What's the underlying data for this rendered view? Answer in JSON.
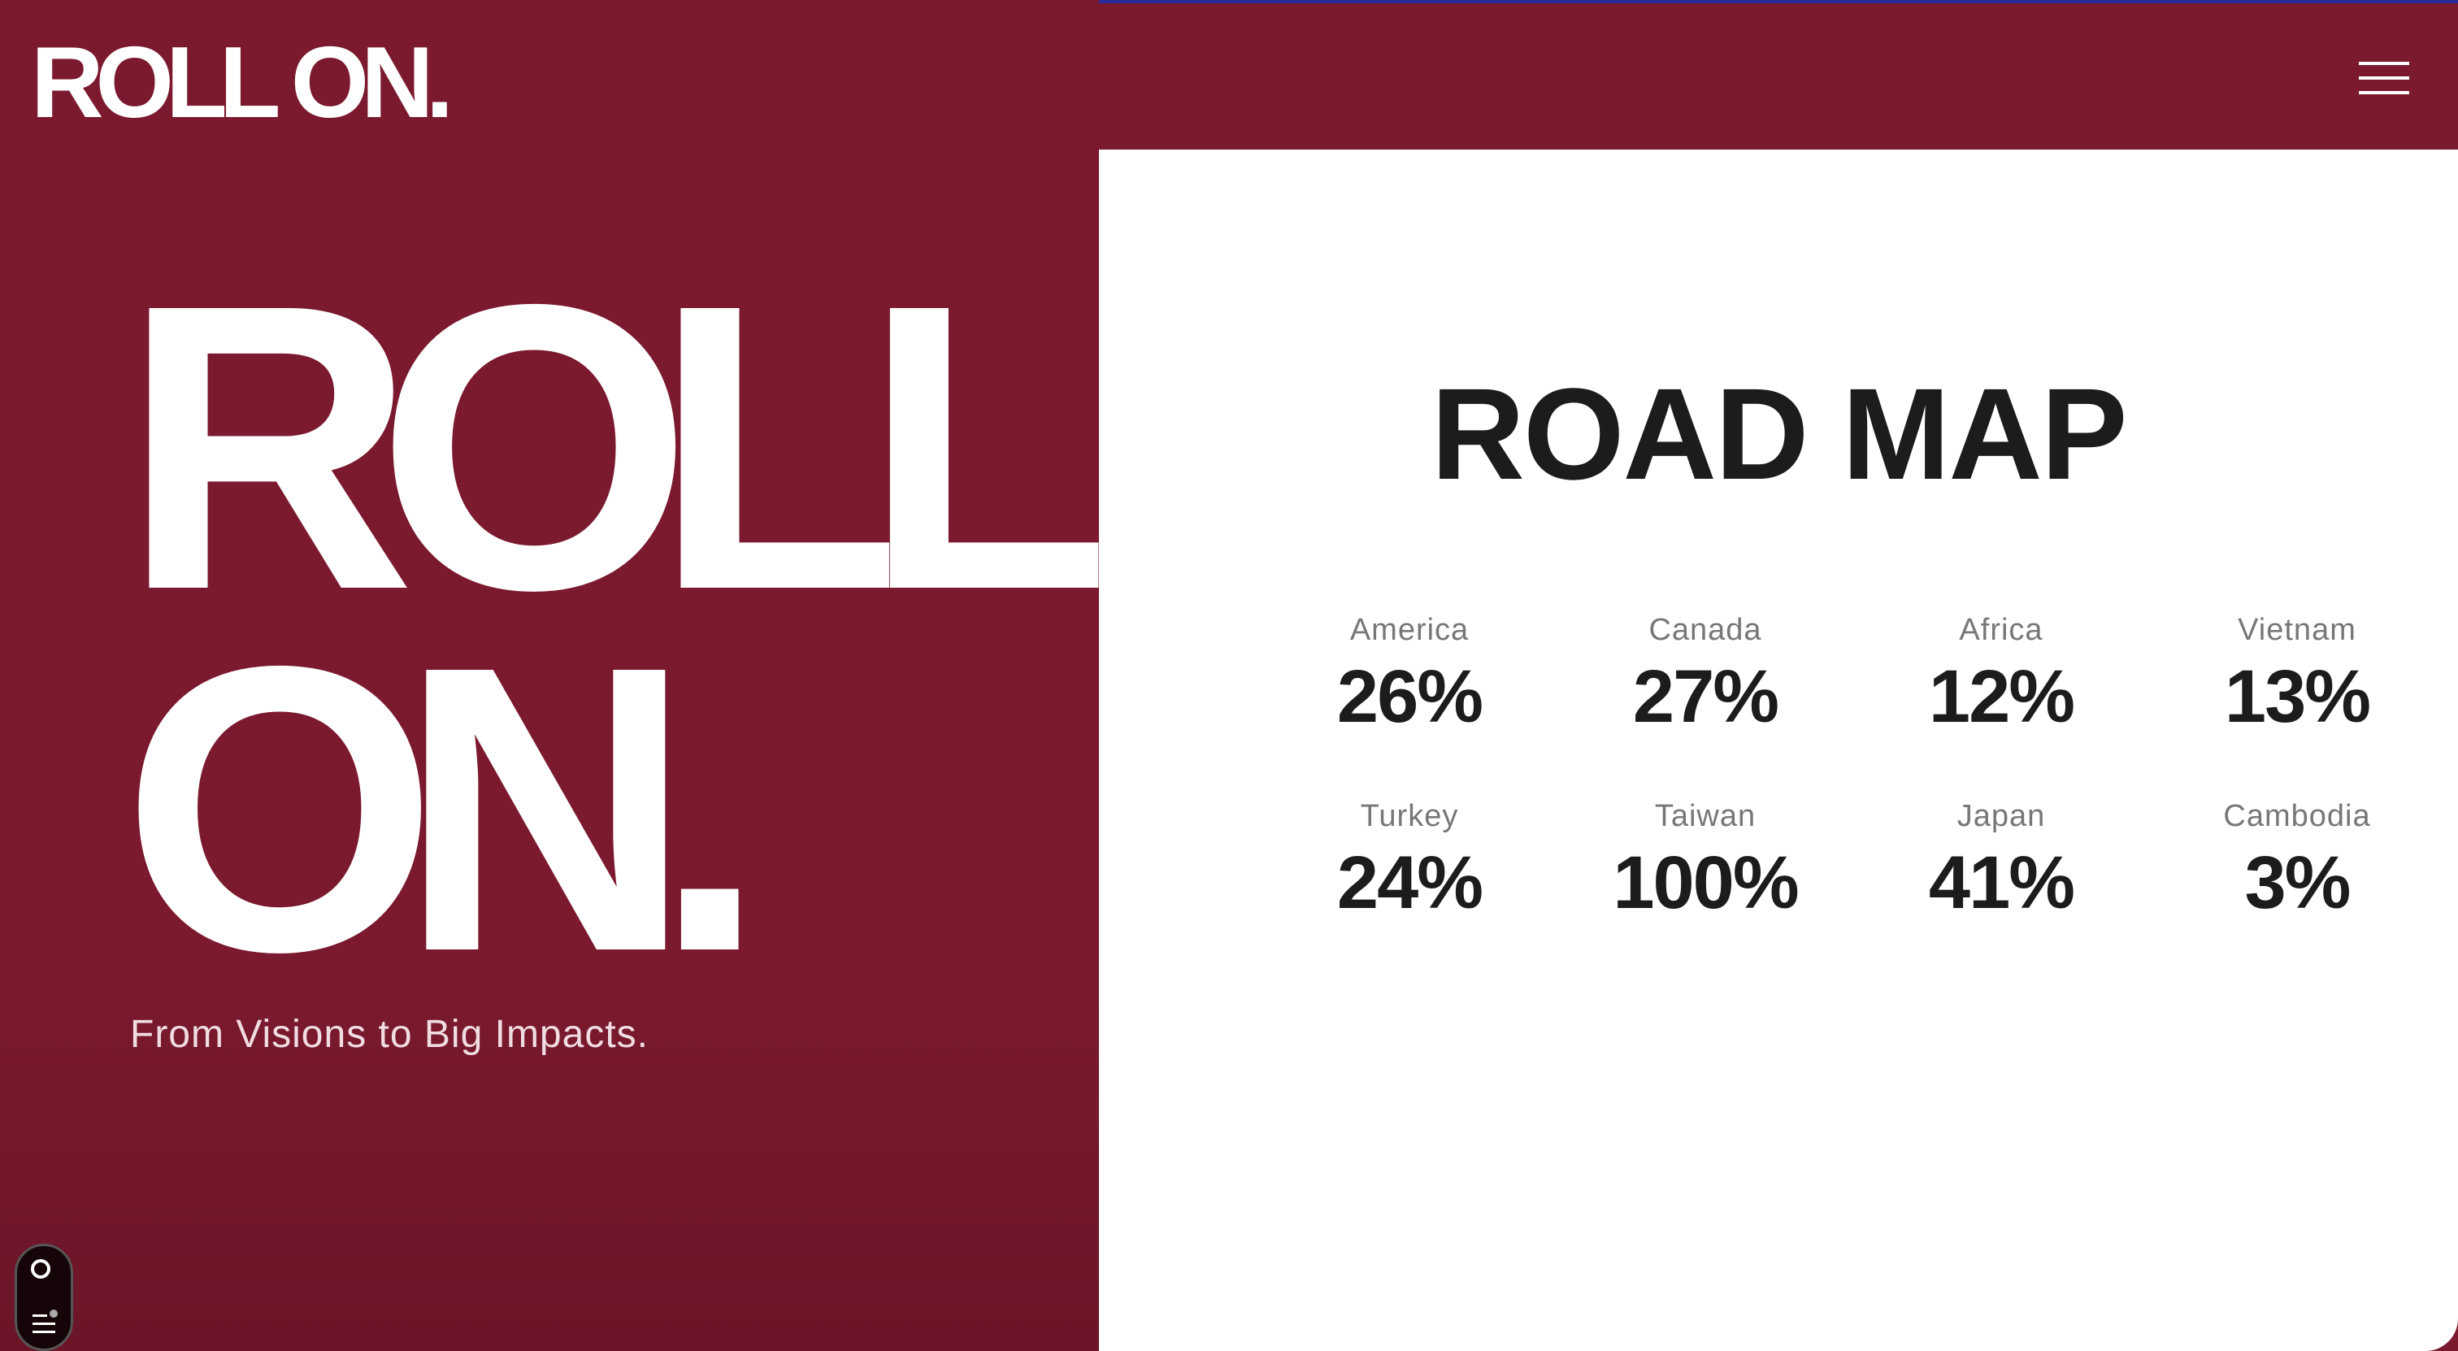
{
  "header": {
    "logo": "ROLL ON."
  },
  "hero": {
    "line1": "ROLL",
    "line2": "ON.",
    "tagline": "From Visions to Big Impacts."
  },
  "roadmap": {
    "title": "ROAD MAP",
    "items": [
      {
        "label": "America",
        "value": "26%"
      },
      {
        "label": "Canada",
        "value": "27%"
      },
      {
        "label": "Africa",
        "value": "12%"
      },
      {
        "label": "Vietnam",
        "value": "13%"
      },
      {
        "label": "Turkey",
        "value": "24%"
      },
      {
        "label": "Taiwan",
        "value": "100%"
      },
      {
        "label": "Japan",
        "value": "41%"
      },
      {
        "label": "Cambodia",
        "value": "3%"
      }
    ]
  },
  "colors": {
    "brand": "#7b1a2e",
    "panel": "#ffffff",
    "text": "#1c1c1c"
  }
}
